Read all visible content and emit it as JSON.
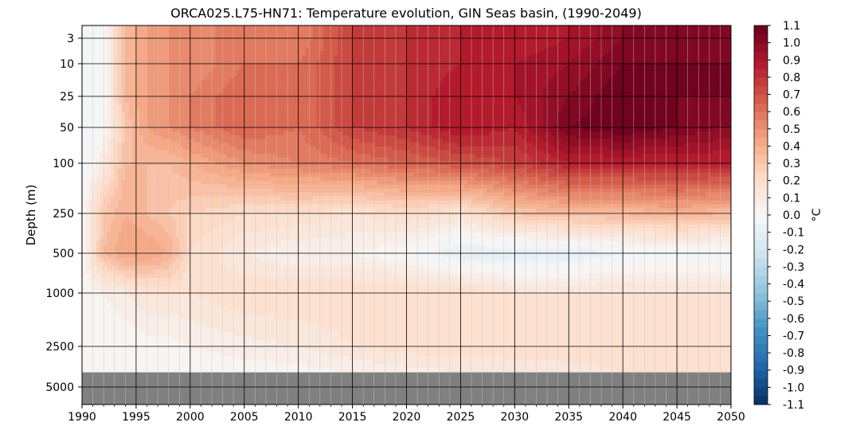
{
  "chart_data": {
    "type": "heatmap",
    "title": "ORCA025.L75-HN71: Temperature evolution, GIN Seas basin, (1990-2049)",
    "xlabel": "",
    "ylabel": "Depth (m)",
    "colorbar_label": "°C",
    "xlim": [
      1990,
      2050
    ],
    "x_ticks": [
      1990,
      1995,
      2000,
      2005,
      2010,
      2015,
      2020,
      2025,
      2030,
      2035,
      2040,
      2045,
      2050
    ],
    "y_scale": "log-like",
    "y_ticks": [
      3,
      10,
      25,
      50,
      100,
      250,
      500,
      1000,
      2500,
      5000
    ],
    "y_tick_labels": [
      "3",
      "10",
      "25",
      "50",
      "100",
      "250",
      "500",
      "1000",
      "2500",
      "5000"
    ],
    "colorbar_ticks": [
      "1.1",
      "1.0",
      "0.9",
      "0.8",
      "0.7",
      "0.6",
      "0.5",
      "0.4",
      "0.3",
      "0.2",
      "0.1",
      "0.0",
      "-0.1",
      "-0.2",
      "-0.3",
      "-0.4",
      "-0.5",
      "-0.6",
      "-0.7",
      "-0.8",
      "-0.9",
      "-1.0",
      "-1.1"
    ],
    "clim": [
      -1.1,
      1.1
    ],
    "colormap": "RdBu_r",
    "grid": true,
    "missing_color": "#808080",
    "years": [
      1990,
      1992,
      1994,
      1996,
      1998,
      2000,
      2005,
      2010,
      2015,
      2020,
      2025,
      2030,
      2035,
      2040,
      2045,
      2049
    ],
    "depths": [
      3,
      10,
      25,
      50,
      100,
      250,
      500,
      1000,
      2500,
      4000
    ],
    "values": [
      [
        -0.05,
        -0.05,
        -0.05,
        -0.05,
        -0.05,
        0.0,
        0.0,
        0.0,
        0.0,
        0.0
      ],
      [
        0.0,
        0.0,
        0.0,
        0.0,
        0.1,
        0.3,
        0.35,
        0.05,
        0.0,
        0.0
      ],
      [
        0.35,
        0.35,
        0.35,
        0.3,
        0.35,
        0.4,
        0.45,
        0.1,
        0.0,
        0.0
      ],
      [
        0.45,
        0.45,
        0.45,
        0.45,
        0.35,
        0.35,
        0.45,
        0.15,
        0.02,
        0.0
      ],
      [
        0.5,
        0.5,
        0.5,
        0.5,
        0.35,
        0.3,
        0.4,
        0.15,
        0.03,
        0.0
      ],
      [
        0.5,
        0.5,
        0.55,
        0.55,
        0.4,
        0.25,
        0.2,
        0.15,
        0.05,
        0.0
      ],
      [
        0.6,
        0.6,
        0.65,
        0.65,
        0.5,
        0.2,
        0.1,
        0.2,
        0.08,
        0.02
      ],
      [
        0.55,
        0.6,
        0.6,
        0.6,
        0.55,
        0.2,
        0.05,
        0.2,
        0.1,
        0.03
      ],
      [
        0.75,
        0.75,
        0.75,
        0.75,
        0.6,
        0.15,
        0.05,
        0.2,
        0.15,
        0.05
      ],
      [
        0.8,
        0.8,
        0.8,
        0.8,
        0.65,
        0.2,
        0.0,
        0.2,
        0.18,
        0.08
      ],
      [
        0.85,
        0.85,
        0.9,
        0.9,
        0.7,
        0.15,
        -0.1,
        0.2,
        0.18,
        0.1
      ],
      [
        0.85,
        0.9,
        0.9,
        0.85,
        0.75,
        0.3,
        -0.1,
        0.15,
        0.18,
        0.12
      ],
      [
        0.9,
        0.95,
        1.0,
        1.05,
        0.85,
        0.35,
        -0.1,
        0.15,
        0.2,
        0.12
      ],
      [
        1.0,
        1.05,
        1.1,
        1.1,
        0.85,
        0.35,
        -0.05,
        0.15,
        0.2,
        0.15
      ],
      [
        1.0,
        1.05,
        1.05,
        1.05,
        0.85,
        0.4,
        -0.05,
        0.15,
        0.2,
        0.15
      ],
      [
        1.0,
        1.05,
        1.05,
        1.0,
        0.85,
        0.35,
        -0.05,
        0.15,
        0.2,
        0.15
      ]
    ]
  }
}
